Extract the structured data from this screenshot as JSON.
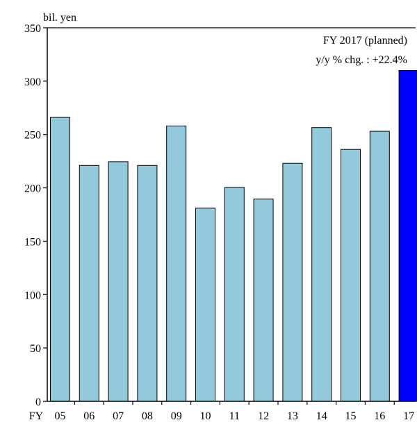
{
  "chart_data": {
    "type": "bar",
    "unit_label": "bil. yen",
    "x_prefix": "FY",
    "categories": [
      "05",
      "06",
      "07",
      "08",
      "09",
      "10",
      "11",
      "12",
      "13",
      "14",
      "15",
      "16",
      "17"
    ],
    "values": [
      266,
      221,
      224.5,
      221,
      258,
      181,
      200.5,
      189.5,
      223,
      256.5,
      236,
      253,
      310
    ],
    "ylim": [
      0,
      350
    ],
    "yticks": [
      0,
      50,
      100,
      150,
      200,
      250,
      300,
      350
    ],
    "grid": false,
    "annotation": {
      "line1": "FY 2017 (planned)",
      "line2": "y/y % chg. : +22.4%"
    },
    "colors": {
      "bar": "#92c9dc",
      "highlight": "#0000ff",
      "edge": "#000000"
    },
    "highlight_index": 12
  }
}
